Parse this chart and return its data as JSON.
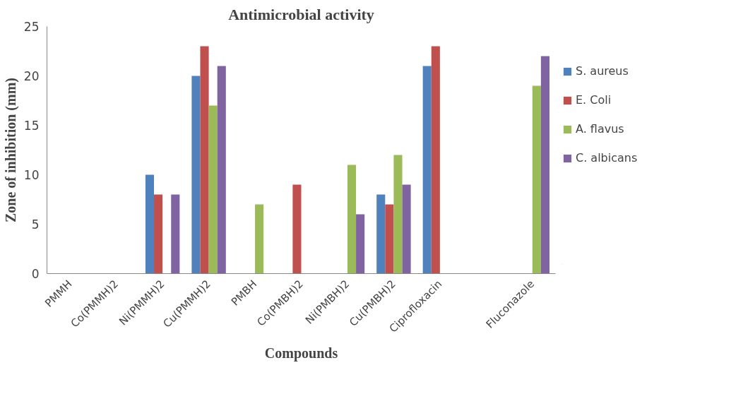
{
  "chart_data": {
    "type": "bar",
    "title": "Antimicrobial activity",
    "xlabel": "Compounds",
    "ylabel": "Zone of inhibition (mm)",
    "categories": [
      "PMMH",
      "Co(PMMH)2",
      "Ni(PMMH)2",
      "Cu(PMMH)2",
      "PMBH",
      "Co(PMBH)2",
      "Ni(PMBH)2",
      "Cu(PMBH)2",
      "Ciprofloxacin",
      null,
      "Fluconazole"
    ],
    "series": [
      {
        "name": "S. aureus",
        "color": "#4f81bd",
        "values": [
          0,
          0,
          10,
          20,
          0,
          0,
          0,
          8,
          21,
          0,
          0
        ]
      },
      {
        "name": "E. Coli",
        "color": "#c0504d",
        "values": [
          0,
          0,
          8,
          23,
          0,
          9,
          0,
          7,
          23,
          0,
          0
        ]
      },
      {
        "name": "A. flavus",
        "color": "#9bbb59",
        "values": [
          0,
          0,
          0,
          17,
          7,
          0,
          11,
          12,
          0,
          0,
          19
        ]
      },
      {
        "name": "C. albicans",
        "color": "#8064a2",
        "values": [
          0,
          0,
          8,
          21,
          0,
          0,
          6,
          9,
          0,
          0,
          22
        ]
      }
    ],
    "ylim": [
      0,
      25
    ],
    "yticks": [
      0,
      5,
      10,
      15,
      20,
      25
    ],
    "grid": false,
    "legend": "right"
  }
}
